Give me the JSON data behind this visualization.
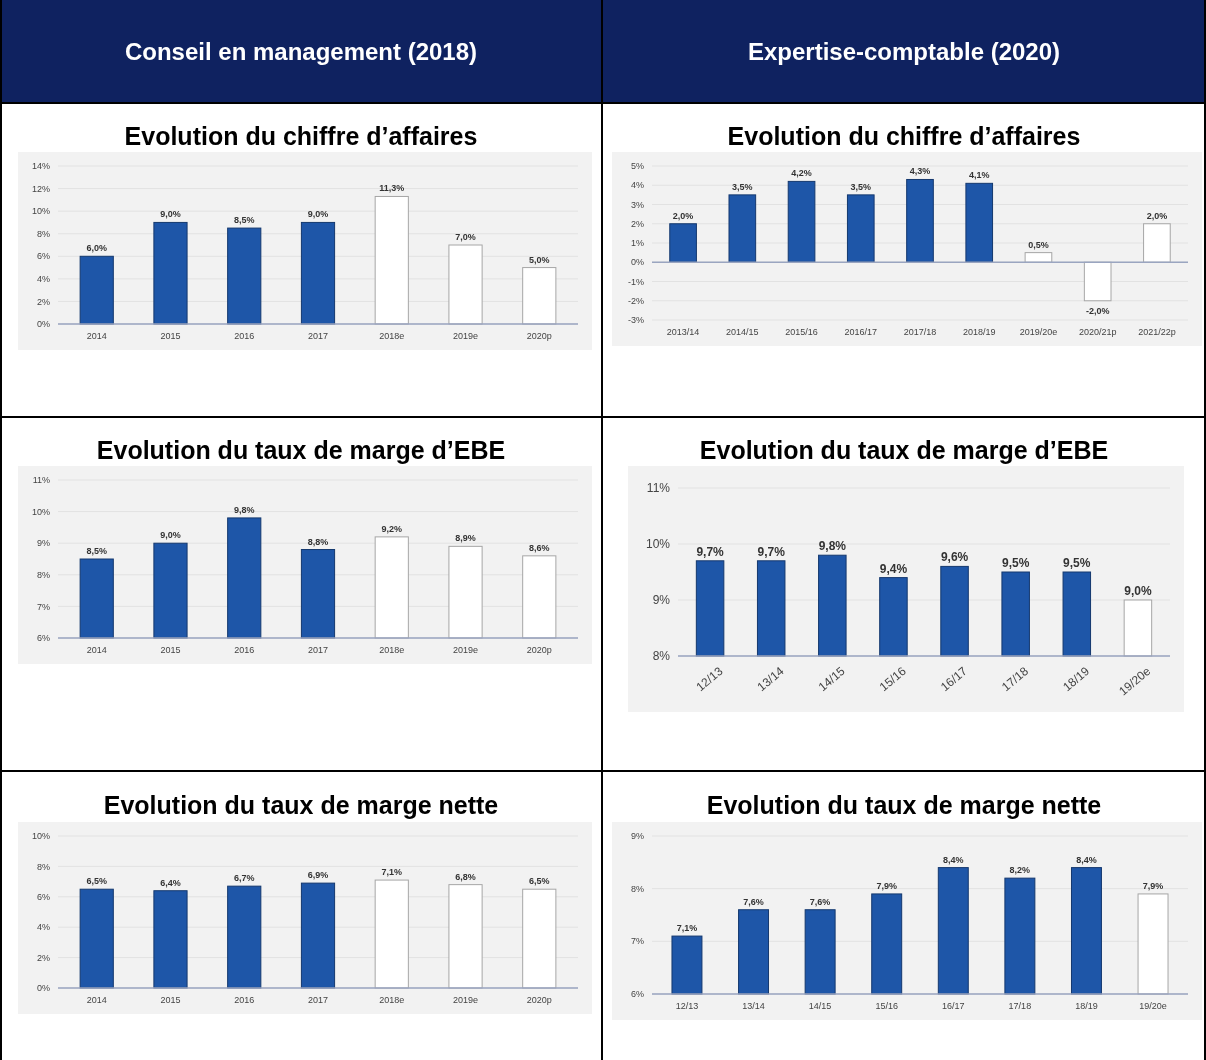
{
  "chart_data": [
    {
      "type": "bar",
      "subtitle": "Conseil en management (2018)",
      "title": "Evolution du chiffre d’affaires",
      "categories": [
        "2014",
        "2015",
        "2016",
        "2017",
        "2018e",
        "2019e",
        "2020p"
      ],
      "values": [
        6.0,
        9.0,
        8.5,
        9.0,
        11.3,
        7.0,
        5.0
      ],
      "value_labels": [
        "6,0%",
        "9,0%",
        "8,5%",
        "9,0%",
        "11,3%",
        "7,0%",
        "5,0%"
      ],
      "colors": [
        "#1e56a8",
        "#1e56a8",
        "#1e56a8",
        "#1e56a8",
        "#ffffff",
        "#ffffff",
        "#ffffff"
      ],
      "ylim": [
        0,
        14
      ],
      "yticks": [
        {
          "value": 0,
          "label": "0%"
        },
        {
          "value": 2,
          "label": "2%"
        },
        {
          "value": 4,
          "label": "4%"
        },
        {
          "value": 6,
          "label": "6%"
        },
        {
          "value": 8,
          "label": "8%"
        },
        {
          "value": 10,
          "label": "10%"
        },
        {
          "value": 12,
          "label": "12%"
        },
        {
          "value": 14,
          "label": "14%"
        }
      ],
      "grid": "y"
    },
    {
      "type": "bar",
      "subtitle": "Expertise-comptable (2020)",
      "title": "Evolution du chiffre d’affaires",
      "categories": [
        "2013/14",
        "2014/15",
        "2015/16",
        "2016/17",
        "2017/18",
        "2018/19",
        "2019/20e",
        "2020/21p",
        "2021/22p"
      ],
      "values": [
        2.0,
        3.5,
        4.2,
        3.5,
        4.3,
        4.1,
        0.5,
        -2.0,
        2.0
      ],
      "value_labels": [
        "2,0%",
        "3,5%",
        "4,2%",
        "3,5%",
        "4,3%",
        "4,1%",
        "0,5%",
        "-2,0%",
        "2,0%"
      ],
      "colors": [
        "#1e56a8",
        "#1e56a8",
        "#1e56a8",
        "#1e56a8",
        "#1e56a8",
        "#1e56a8",
        "#ffffff",
        "#ffffff",
        "#ffffff"
      ],
      "ylim": [
        -3,
        5
      ],
      "yticks": [
        {
          "value": -3,
          "label": "-3%"
        },
        {
          "value": -2,
          "label": "-2%"
        },
        {
          "value": -1,
          "label": "-1%"
        },
        {
          "value": 0,
          "label": "0%"
        },
        {
          "value": 1,
          "label": "1%"
        },
        {
          "value": 2,
          "label": "2%"
        },
        {
          "value": 3,
          "label": "3%"
        },
        {
          "value": 4,
          "label": "4%"
        },
        {
          "value": 5,
          "label": "5%"
        }
      ],
      "grid": "y"
    },
    {
      "type": "bar",
      "title": "Evolution du taux de marge d’EBE",
      "categories": [
        "2014",
        "2015",
        "2016",
        "2017",
        "2018e",
        "2019e",
        "2020p"
      ],
      "values": [
        8.5,
        9.0,
        9.8,
        8.8,
        9.2,
        8.9,
        8.6
      ],
      "value_labels": [
        "8,5%",
        "9,0%",
        "9,8%",
        "8,8%",
        "9,2%",
        "8,9%",
        "8,6%"
      ],
      "colors": [
        "#1e56a8",
        "#1e56a8",
        "#1e56a8",
        "#1e56a8",
        "#ffffff",
        "#ffffff",
        "#ffffff"
      ],
      "ylim": [
        6,
        11
      ],
      "yticks": [
        {
          "value": 6,
          "label": "6%"
        },
        {
          "value": 7,
          "label": "7%"
        },
        {
          "value": 8,
          "label": "8%"
        },
        {
          "value": 9,
          "label": "9%"
        },
        {
          "value": 10,
          "label": "10%"
        },
        {
          "value": 11,
          "label": "11%"
        }
      ],
      "grid": "y"
    },
    {
      "type": "bar",
      "title": "Evolution du taux de marge d’EBE",
      "categories": [
        "12/13",
        "13/14",
        "14/15",
        "15/16",
        "16/17",
        "17/18",
        "18/19",
        "19/20e"
      ],
      "values": [
        9.7,
        9.7,
        9.8,
        9.4,
        9.6,
        9.5,
        9.5,
        9.0
      ],
      "value_labels": [
        "9,7%",
        "9,7%",
        "9,8%",
        "9,4%",
        "9,6%",
        "9,5%",
        "9,5%",
        "9,0%"
      ],
      "colors": [
        "#1e56a8",
        "#1e56a8",
        "#1e56a8",
        "#1e56a8",
        "#1e56a8",
        "#1e56a8",
        "#1e56a8",
        "#ffffff"
      ],
      "ylim": [
        8,
        11
      ],
      "yticks": [
        {
          "value": 8,
          "label": "8%"
        },
        {
          "value": 9,
          "label": "9%"
        },
        {
          "value": 10,
          "label": "10%"
        },
        {
          "value": 11,
          "label": "11%"
        }
      ],
      "grid": "y"
    },
    {
      "type": "bar",
      "title": "Evolution du taux de marge nette",
      "categories": [
        "2014",
        "2015",
        "2016",
        "2017",
        "2018e",
        "2019e",
        "2020p"
      ],
      "values": [
        6.5,
        6.4,
        6.7,
        6.9,
        7.1,
        6.8,
        6.5
      ],
      "value_labels": [
        "6,5%",
        "6,4%",
        "6,7%",
        "6,9%",
        "7,1%",
        "6,8%",
        "6,5%"
      ],
      "colors": [
        "#1e56a8",
        "#1e56a8",
        "#1e56a8",
        "#1e56a8",
        "#ffffff",
        "#ffffff",
        "#ffffff"
      ],
      "ylim": [
        0,
        10
      ],
      "yticks": [
        {
          "value": 0,
          "label": "0%"
        },
        {
          "value": 2,
          "label": "2%"
        },
        {
          "value": 4,
          "label": "4%"
        },
        {
          "value": 6,
          "label": "6%"
        },
        {
          "value": 8,
          "label": "8%"
        },
        {
          "value": 10,
          "label": "10%"
        }
      ],
      "grid": "y"
    },
    {
      "type": "bar",
      "title": "Evolution du taux de marge nette",
      "categories": [
        "12/13",
        "13/14",
        "14/15",
        "15/16",
        "16/17",
        "17/18",
        "18/19",
        "19/20e"
      ],
      "values": [
        7.1,
        7.6,
        7.6,
        7.9,
        8.4,
        8.2,
        8.4,
        7.9
      ],
      "value_labels": [
        "7,1%",
        "7,6%",
        "7,6%",
        "7,9%",
        "8,4%",
        "8,2%",
        "8,4%",
        "7,9%"
      ],
      "colors": [
        "#1e56a8",
        "#1e56a8",
        "#1e56a8",
        "#1e56a8",
        "#1e56a8",
        "#1e56a8",
        "#1e56a8",
        "#ffffff"
      ],
      "ylim": [
        6,
        9
      ],
      "yticks": [
        {
          "value": 6,
          "label": "6%"
        },
        {
          "value": 7,
          "label": "7%"
        },
        {
          "value": 8,
          "label": "8%"
        },
        {
          "value": 9,
          "label": "9%"
        }
      ],
      "grid": "y"
    }
  ]
}
